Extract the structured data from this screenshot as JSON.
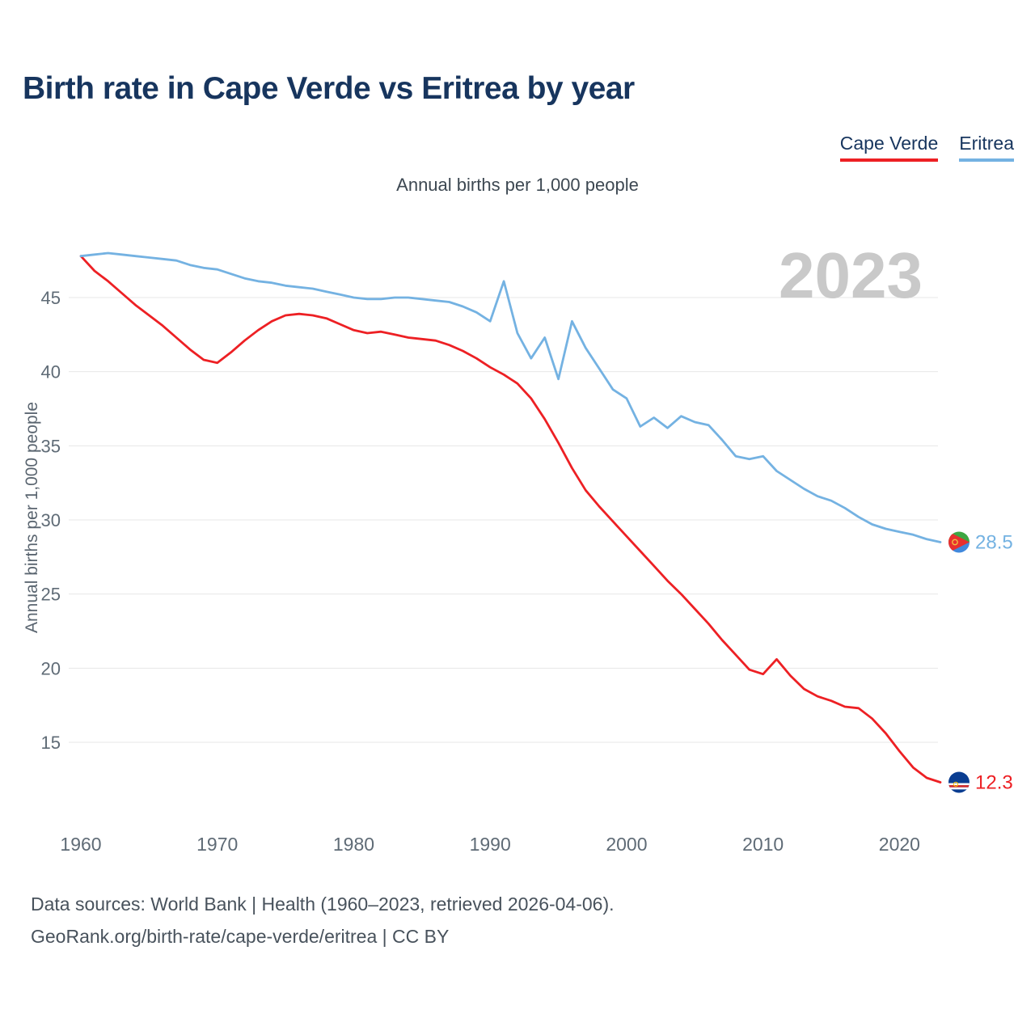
{
  "header": {
    "title": "Birth rate in Cape Verde vs Eritrea by year",
    "subtitle": "Annual births per 1,000 people",
    "watermark_year": "2023"
  },
  "legend": [
    {
      "label": "Cape Verde",
      "color": "#ed2024"
    },
    {
      "label": "Eritrea",
      "color": "#74b2e2"
    }
  ],
  "footer": {
    "line1": "Data sources: World Bank | Health (1960–2023, retrieved 2026-04-06).",
    "line2": "GeoRank.org/birth-rate/cape-verde/eritrea | CC BY"
  },
  "colors": {
    "title": "#17355e",
    "grid": "#e7e7e7",
    "tick_label": "#5f6b76",
    "watermark": "#c9c9c9",
    "cape_verde": "#ed2024",
    "eritrea": "#74b2e2"
  },
  "chart_data": {
    "type": "line",
    "title": "Birth rate in Cape Verde vs Eritrea by year",
    "subtitle": "Annual births per 1,000 people",
    "xlabel": "",
    "ylabel": "Annual births per 1,000 people",
    "x_range": [
      1960,
      2023
    ],
    "ylim": [
      12,
      49
    ],
    "x_ticks": [
      1960,
      1970,
      1980,
      1990,
      2000,
      2010,
      2020
    ],
    "y_ticks": [
      15,
      20,
      25,
      30,
      35,
      40,
      45
    ],
    "grid": "horizontal",
    "legend_position": "top-right",
    "x": [
      1960,
      1961,
      1962,
      1963,
      1964,
      1965,
      1966,
      1967,
      1968,
      1969,
      1970,
      1971,
      1972,
      1973,
      1974,
      1975,
      1976,
      1977,
      1978,
      1979,
      1980,
      1981,
      1982,
      1983,
      1984,
      1985,
      1986,
      1987,
      1988,
      1989,
      1990,
      1991,
      1992,
      1993,
      1994,
      1995,
      1996,
      1997,
      1998,
      1999,
      2000,
      2001,
      2002,
      2003,
      2004,
      2005,
      2006,
      2007,
      2008,
      2009,
      2010,
      2011,
      2012,
      2013,
      2014,
      2015,
      2016,
      2017,
      2018,
      2019,
      2020,
      2021,
      2022,
      2023
    ],
    "series": [
      {
        "name": "Cape Verde",
        "color": "#ed2024",
        "end_value": 12.3,
        "end_label": "12.3",
        "values": [
          47.8,
          46.8,
          46.1,
          45.3,
          44.5,
          43.8,
          43.1,
          42.3,
          41.5,
          40.8,
          40.6,
          41.3,
          42.1,
          42.8,
          43.4,
          43.8,
          43.9,
          43.8,
          43.6,
          43.2,
          42.8,
          42.6,
          42.7,
          42.5,
          42.3,
          42.2,
          42.1,
          41.8,
          41.4,
          40.9,
          40.3,
          39.8,
          39.2,
          38.2,
          36.8,
          35.2,
          33.5,
          32.0,
          30.9,
          29.9,
          28.9,
          27.9,
          26.9,
          25.9,
          25.0,
          24.0,
          23.0,
          21.9,
          20.9,
          19.9,
          19.6,
          20.6,
          19.5,
          18.6,
          18.1,
          17.8,
          17.4,
          17.3,
          16.6,
          15.6,
          14.4,
          13.3,
          12.6,
          12.3
        ]
      },
      {
        "name": "Eritrea",
        "color": "#74b2e2",
        "end_value": 28.5,
        "end_label": "28.5",
        "values": [
          47.8,
          47.9,
          48.0,
          47.9,
          47.8,
          47.7,
          47.6,
          47.5,
          47.2,
          47.0,
          46.9,
          46.6,
          46.3,
          46.1,
          46.0,
          45.8,
          45.7,
          45.6,
          45.4,
          45.2,
          45.0,
          44.9,
          44.9,
          45.0,
          45.0,
          44.9,
          44.8,
          44.7,
          44.4,
          44.0,
          43.4,
          46.1,
          42.6,
          40.9,
          42.3,
          39.5,
          43.4,
          41.6,
          40.2,
          38.8,
          38.2,
          36.3,
          36.9,
          36.2,
          37.0,
          36.6,
          36.4,
          35.4,
          34.3,
          34.1,
          34.3,
          33.3,
          32.7,
          32.1,
          31.6,
          31.3,
          30.8,
          30.2,
          29.7,
          29.4,
          29.2,
          29.0,
          28.7,
          28.5
        ]
      }
    ]
  }
}
